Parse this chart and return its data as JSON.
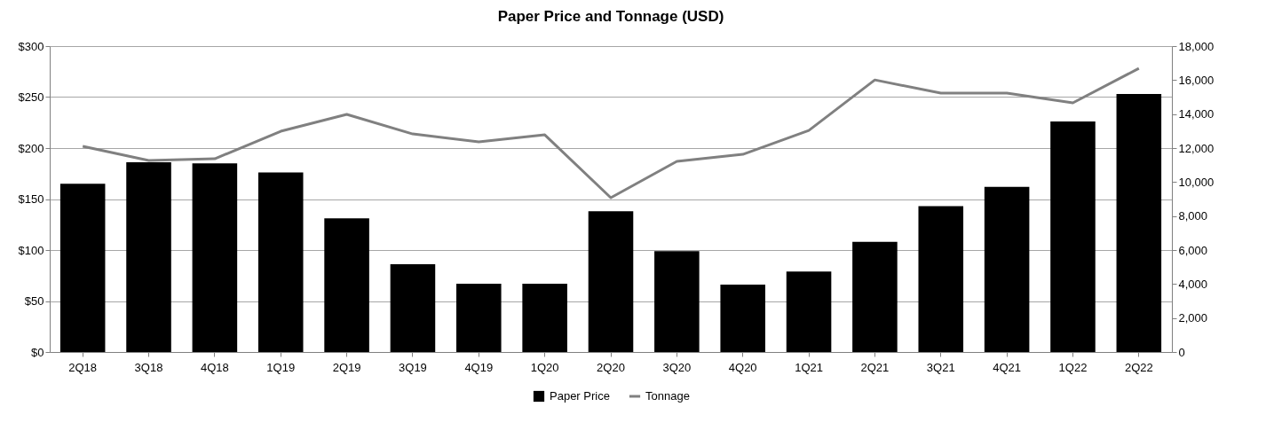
{
  "chart_data": {
    "type": "bar",
    "title": "Paper Price and Tonnage (USD)",
    "categories": [
      "2Q18",
      "3Q18",
      "4Q18",
      "1Q19",
      "2Q19",
      "3Q19",
      "4Q19",
      "1Q20",
      "2Q20",
      "3Q20",
      "4Q20",
      "1Q21",
      "2Q21",
      "3Q21",
      "4Q21",
      "1Q22",
      "2Q22"
    ],
    "series": [
      {
        "name": "Paper Price",
        "color": "#000000",
        "values": [
          165,
          186,
          185,
          176,
          131,
          86,
          67,
          67,
          138,
          99,
          66,
          79,
          108,
          143,
          162,
          226,
          253
        ]
      },
      {
        "name": "Tonnage",
        "type": "line",
        "axis": "y2",
        "color": "#808080",
        "values": [
          12100,
          11270,
          11370,
          12990,
          13980,
          12830,
          12360,
          12780,
          9080,
          11220,
          11630,
          13040,
          16010,
          15230,
          15230,
          14660,
          16690
        ]
      }
    ],
    "ylim": [
      0,
      300
    ],
    "yticks": [
      {
        "value": 0,
        "label": "$0"
      },
      {
        "value": 50,
        "label": "$50"
      },
      {
        "value": 100,
        "label": "$100"
      },
      {
        "value": 150,
        "label": "$150"
      },
      {
        "value": 200,
        "label": "$200"
      },
      {
        "value": 250,
        "label": "$250"
      },
      {
        "value": 300,
        "label": "$300"
      }
    ],
    "y2lim": [
      0,
      18000
    ],
    "y2ticks": [
      0,
      {
        "value": 2000,
        "label": "2,000"
      },
      {
        "value": 4000,
        "label": "4,000"
      },
      {
        "value": 6000,
        "label": "6,000"
      },
      {
        "value": 8000,
        "label": "8,000"
      },
      {
        "value": 10000,
        "label": "10,000"
      },
      {
        "value": 12000,
        "label": "12,000"
      },
      {
        "value": 14000,
        "label": "14,000"
      },
      {
        "value": 16000,
        "label": "16,000"
      },
      {
        "value": 18000,
        "label": "18,000"
      }
    ],
    "grid": "y",
    "legend": "bottom"
  }
}
